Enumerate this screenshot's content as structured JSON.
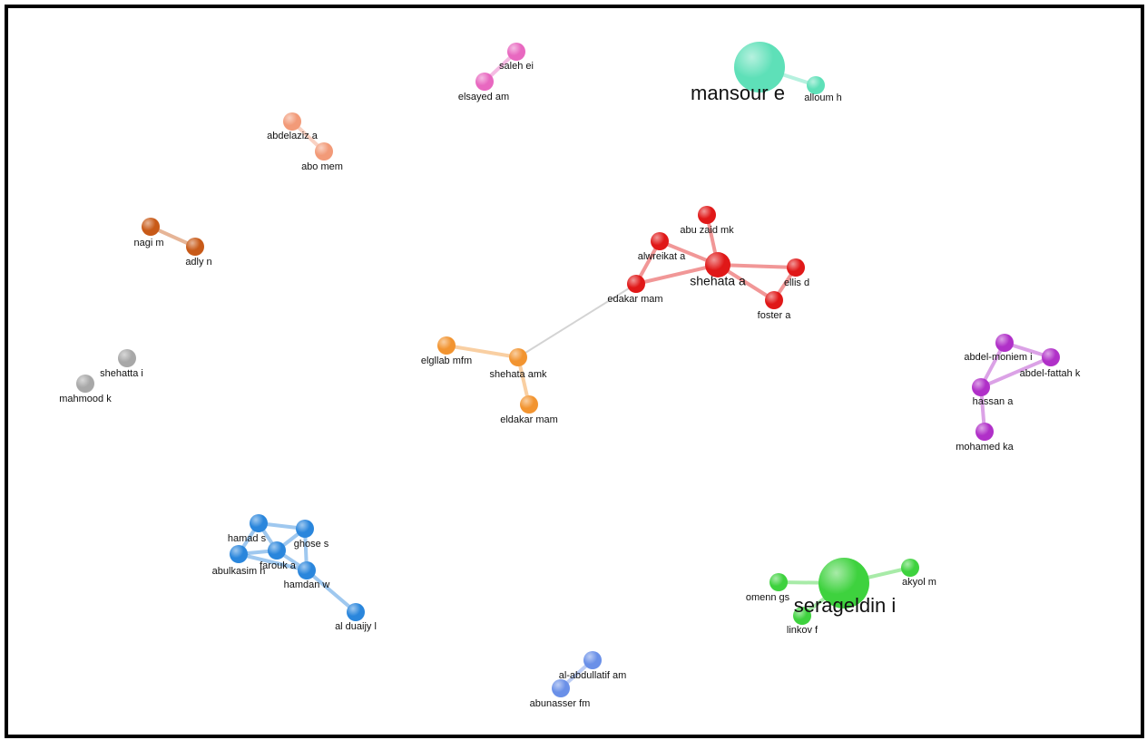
{
  "network": {
    "nodes": [
      {
        "id": "saleh",
        "label": "saleh ei",
        "cluster": "pink",
        "size": "small"
      },
      {
        "id": "elsayed",
        "label": "elsayed am",
        "cluster": "pink",
        "size": "small"
      },
      {
        "id": "mansour",
        "label": "mansour e",
        "cluster": "teal",
        "size": "large"
      },
      {
        "id": "alloum",
        "label": "alloum h",
        "cluster": "teal",
        "size": "small"
      },
      {
        "id": "abdelaziz",
        "label": "abdelaziz a",
        "cluster": "salmon",
        "size": "small"
      },
      {
        "id": "abomem",
        "label": "abo mem",
        "cluster": "salmon",
        "size": "small"
      },
      {
        "id": "nagi",
        "label": "nagi m",
        "cluster": "brown",
        "size": "small"
      },
      {
        "id": "adly",
        "label": "adly n",
        "cluster": "brown",
        "size": "small"
      },
      {
        "id": "abuzaid",
        "label": "abu zaid mk",
        "cluster": "red",
        "size": "small"
      },
      {
        "id": "alwreikat",
        "label": "alwreikat a",
        "cluster": "red",
        "size": "small"
      },
      {
        "id": "shehata_a",
        "label": "shehata a",
        "cluster": "red",
        "size": "medium"
      },
      {
        "id": "ellis",
        "label": "ellis d",
        "cluster": "red",
        "size": "small"
      },
      {
        "id": "edakar",
        "label": "edakar mam",
        "cluster": "red",
        "size": "small"
      },
      {
        "id": "foster",
        "label": "foster a",
        "cluster": "red",
        "size": "small"
      },
      {
        "id": "elgllab",
        "label": "elgllab mfm",
        "cluster": "orange",
        "size": "small"
      },
      {
        "id": "shehata_amk",
        "label": "shehata amk",
        "cluster": "orange",
        "size": "small"
      },
      {
        "id": "eldakar",
        "label": "eldakar mam",
        "cluster": "orange",
        "size": "small"
      },
      {
        "id": "shehatta",
        "label": "shehatta i",
        "cluster": "gray",
        "size": "small"
      },
      {
        "id": "mahmood",
        "label": "mahmood k",
        "cluster": "gray",
        "size": "small"
      },
      {
        "id": "abdelmoniem",
        "label": "abdel-moniem i",
        "cluster": "purple",
        "size": "small"
      },
      {
        "id": "abdelfattah",
        "label": "abdel-fattah k",
        "cluster": "purple",
        "size": "small"
      },
      {
        "id": "hassan",
        "label": "hassan a",
        "cluster": "purple",
        "size": "small"
      },
      {
        "id": "mohamed",
        "label": "mohamed ka",
        "cluster": "purple",
        "size": "small"
      },
      {
        "id": "hamad",
        "label": "hamad s",
        "cluster": "blue",
        "size": "small"
      },
      {
        "id": "ghose",
        "label": "ghose s",
        "cluster": "blue",
        "size": "small"
      },
      {
        "id": "farouk",
        "label": "farouk a",
        "cluster": "blue",
        "size": "small"
      },
      {
        "id": "abulkasim",
        "label": "abulkasim n",
        "cluster": "blue",
        "size": "small"
      },
      {
        "id": "hamdan",
        "label": "hamdan w",
        "cluster": "blue",
        "size": "small"
      },
      {
        "id": "alduaijy",
        "label": "al duaijy l",
        "cluster": "blue",
        "size": "small"
      },
      {
        "id": "omenn",
        "label": "omenn gs",
        "cluster": "green",
        "size": "small"
      },
      {
        "id": "serageldin",
        "label": "serageldin i",
        "cluster": "green",
        "size": "large"
      },
      {
        "id": "akyol",
        "label": "akyol m",
        "cluster": "green",
        "size": "small"
      },
      {
        "id": "linkov",
        "label": "linkov f",
        "cluster": "green",
        "size": "small"
      },
      {
        "id": "alabdullatif",
        "label": "al-abdullatif am",
        "cluster": "lightblue",
        "size": "small"
      },
      {
        "id": "abunasser",
        "label": "abunasser fm",
        "cluster": "lightblue",
        "size": "small"
      }
    ],
    "edges": [
      [
        "saleh",
        "elsayed"
      ],
      [
        "mansour",
        "alloum"
      ],
      [
        "abdelaziz",
        "abomem"
      ],
      [
        "nagi",
        "adly"
      ],
      [
        "abuzaid",
        "shehata_a"
      ],
      [
        "alwreikat",
        "shehata_a"
      ],
      [
        "alwreikat",
        "edakar"
      ],
      [
        "edakar",
        "shehata_a"
      ],
      [
        "shehata_a",
        "ellis"
      ],
      [
        "shehata_a",
        "foster"
      ],
      [
        "ellis",
        "foster"
      ],
      [
        "edakar",
        "shehata_amk"
      ],
      [
        "elgllab",
        "shehata_amk"
      ],
      [
        "shehata_amk",
        "eldakar"
      ],
      [
        "abdelmoniem",
        "abdelfattah"
      ],
      [
        "abdelmoniem",
        "hassan"
      ],
      [
        "abdelfattah",
        "hassan"
      ],
      [
        "hassan",
        "mohamed"
      ],
      [
        "hamad",
        "ghose"
      ],
      [
        "hamad",
        "farouk"
      ],
      [
        "hamad",
        "abulkasim"
      ],
      [
        "ghose",
        "farouk"
      ],
      [
        "ghose",
        "hamdan"
      ],
      [
        "abulkasim",
        "farouk"
      ],
      [
        "farouk",
        "hamdan"
      ],
      [
        "abulkasim",
        "hamdan"
      ],
      [
        "hamdan",
        "alduaijy"
      ],
      [
        "omenn",
        "serageldin"
      ],
      [
        "serageldin",
        "akyol"
      ],
      [
        "serageldin",
        "linkov"
      ],
      [
        "alabdullatif",
        "abunasser"
      ]
    ],
    "colors": {
      "pink": "#e868c0",
      "teal": "#5ee0b8",
      "salmon": "#f29a78",
      "brown": "#c85a18",
      "red": "#e01818",
      "orange": "#f29430",
      "gray": "#a8a8a8",
      "purple": "#b030c8",
      "blue": "#2a86dc",
      "green": "#3ed23e",
      "lightblue": "#6a90e8",
      "inter": "#c8c8c8"
    }
  }
}
